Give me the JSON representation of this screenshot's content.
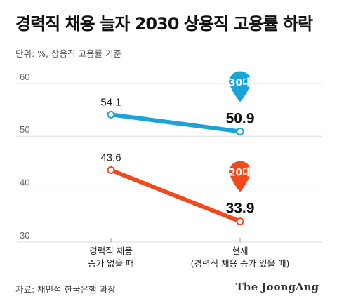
{
  "header": {
    "title": "경력직 채용 늘자 2030 상용직 고용률 하락",
    "subtitle": "단위: %, 상용직 고용률 기준"
  },
  "footer": {
    "source": "자료: 채민석 한국은행 과장",
    "brand": "The JoongAng"
  },
  "chart_data": {
    "type": "line",
    "categories": [
      [
        "경력직 채용",
        "증가 없을 때"
      ],
      [
        "현재",
        "(경력직 채용 증가 있을 때)"
      ]
    ],
    "series": [
      {
        "name": "30대",
        "values": [
          54.1,
          50.9
        ],
        "color": "#1aa3d9"
      },
      {
        "name": "20대",
        "values": [
          43.6,
          33.9
        ],
        "color": "#f04a1c"
      }
    ],
    "yticks": [
      30,
      40,
      50,
      60
    ],
    "ylim": [
      30,
      62.5
    ],
    "grid": true,
    "legend": "pin-markers-at-end"
  }
}
